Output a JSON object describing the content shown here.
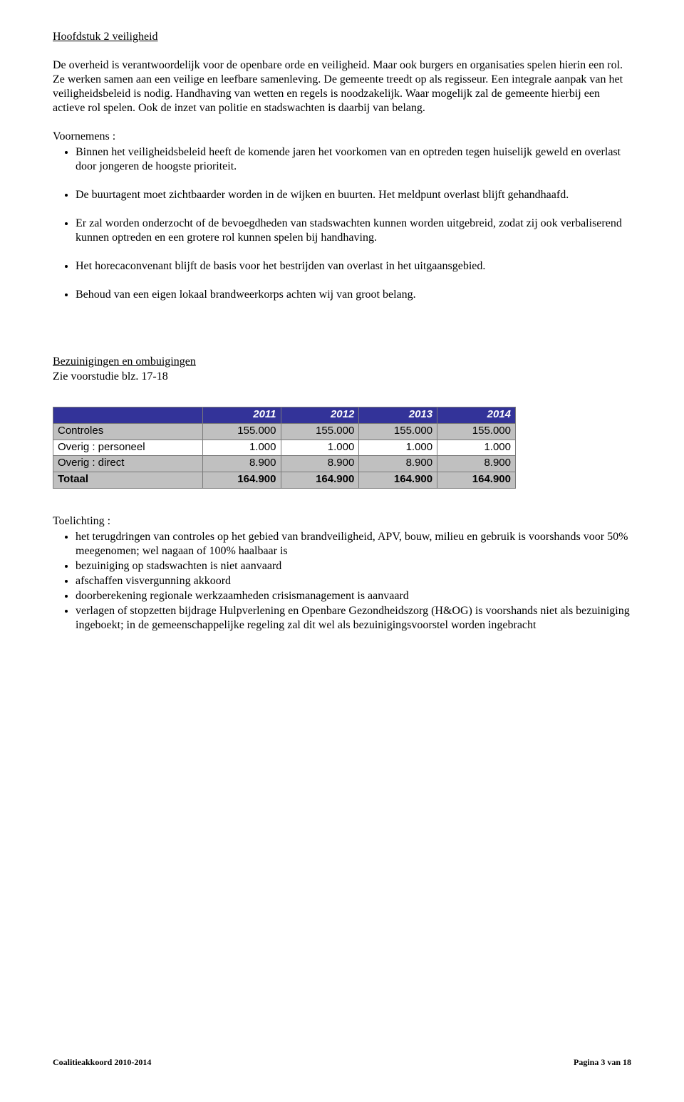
{
  "chapter_title": "Hoofdstuk 2 veiligheid",
  "intro_paragraph": "De overheid is verantwoordelijk voor de openbare orde en veiligheid. Maar ook burgers en organisaties spelen hierin een rol. Ze werken samen aan een veilige en leefbare samenleving. De gemeente treedt op als regisseur. Een integrale aanpak van het veiligheidsbeleid is nodig. Handhaving van wetten en regels is noodzakelijk. Waar mogelijk zal de gemeente hierbij een actieve rol spelen. Ook de inzet van politie en stadswachten is daarbij van belang.",
  "voornemens_label": "Voornemens :",
  "voornemens": [
    "Binnen het veiligheidsbeleid heeft de komende jaren het voorkomen van en optreden tegen huiselijk geweld en overlast door jongeren de hoogste prioriteit.",
    "De buurtagent moet zichtbaarder worden in de wijken en buurten. Het meldpunt overlast blijft gehandhaafd.",
    "Er zal worden onderzocht of de bevoegdheden van stadswachten kunnen worden uitgebreid, zodat zij ook verbaliserend kunnen optreden en een grotere rol kunnen spelen bij handhaving.",
    "Het horecaconvenant blijft de basis voor het bestrijden van overlast in het uitgaansgebied.",
    "Behoud van een eigen lokaal brandweerkorps achten wij van groot belang."
  ],
  "bezuinigingen_heading": "Bezuinigingen en ombuigingen",
  "bezuinigingen_subref": "Zie voorstudie blz. 17-18",
  "table": {
    "years": [
      "2011",
      "2012",
      "2013",
      "2014"
    ],
    "rows": [
      {
        "label": "Controles",
        "values": [
          "155.000",
          "155.000",
          "155.000",
          "155.000"
        ],
        "zebra": true
      },
      {
        "label": "Overig : personeel",
        "values": [
          "1.000",
          "1.000",
          "1.000",
          "1.000"
        ],
        "zebra": false
      },
      {
        "label": "Overig : direct",
        "values": [
          "8.900",
          "8.900",
          "8.900",
          "8.900"
        ],
        "zebra": true
      }
    ],
    "total": {
      "label": "Totaal",
      "values": [
        "164.900",
        "164.900",
        "164.900",
        "164.900"
      ]
    }
  },
  "toelichting_label": "Toelichting :",
  "toelichting": [
    "het terugdringen van controles op het gebied van brandveiligheid, APV, bouw, milieu en gebruik is voorshands voor 50% meegenomen; wel nagaan of 100% haalbaar is",
    "bezuiniging op stadswachten is niet aanvaard",
    "afschaffen visvergunning akkoord",
    "doorberekening regionale werkzaamheden crisismanagement is aanvaard",
    "verlagen of stopzetten bijdrage Hulpverlening en Openbare Gezondheidszorg (H&OG) is voorshands niet als bezuiniging ingeboekt; in de gemeenschappelijke regeling zal dit wel als bezuinigingsvoorstel worden ingebracht"
  ],
  "footer_left": "Coalitieakkoord 2010-2014",
  "footer_right": "Pagina 3 van 18"
}
